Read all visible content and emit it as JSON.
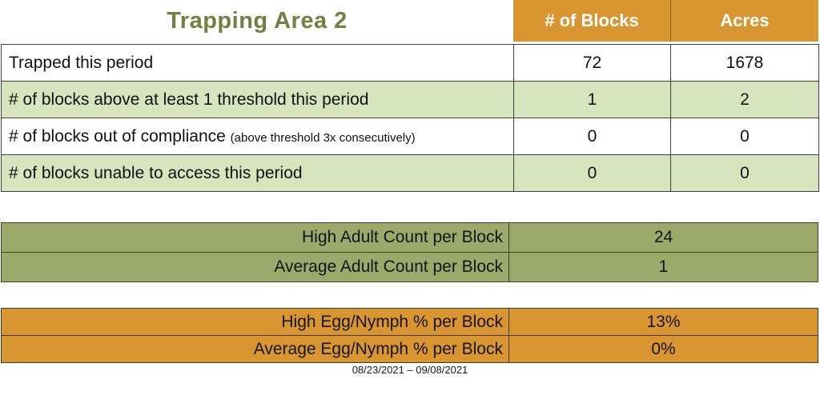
{
  "title": "Trapping Area 2",
  "colors": {
    "title_green": "#6f8040",
    "header_orange": "#d9952f",
    "row_light_green": "#d7e4bd",
    "olive_green": "#9da96a",
    "border_dark": "#3f3f3f",
    "header_text": "#ffffff"
  },
  "main_table": {
    "column_headers": {
      "blocks": "# of Blocks",
      "acres": "Acres"
    },
    "rows": [
      {
        "label": "Trapped this period",
        "sublabel": "",
        "blocks": "72",
        "acres": "1678"
      },
      {
        "label": "# of blocks above at least 1 threshold this period",
        "sublabel": "",
        "blocks": "1",
        "acres": "2"
      },
      {
        "label": "# of blocks out of compliance",
        "sublabel": "(above threshold 3x consecutively)",
        "blocks": "0",
        "acres": "0"
      },
      {
        "label": "# of blocks unable to access this period",
        "sublabel": "",
        "blocks": "0",
        "acres": "0"
      }
    ]
  },
  "adult_table": {
    "rows": [
      {
        "label": "High Adult Count per Block",
        "value": "24"
      },
      {
        "label": "Average Adult Count per Block",
        "value": "1"
      }
    ]
  },
  "egg_table": {
    "rows": [
      {
        "label": "High Egg/Nymph % per Block",
        "value": "13%"
      },
      {
        "label": "Average Egg/Nymph % per Block",
        "value": "0%"
      }
    ]
  },
  "footer": {
    "date_range": "08/23/2021 – 09/08/2021"
  }
}
